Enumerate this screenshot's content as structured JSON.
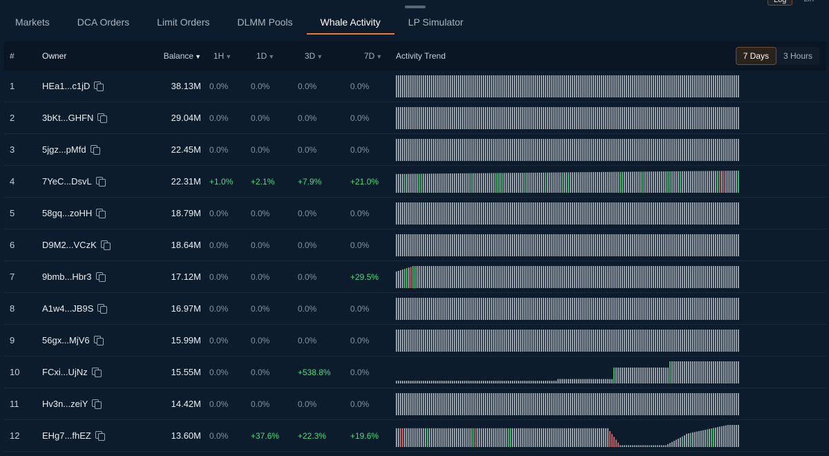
{
  "corner_toggle": {
    "log": "Log",
    "lin": "Lin"
  },
  "tabs": [
    {
      "label": "Markets",
      "active": false
    },
    {
      "label": "DCA Orders",
      "active": false
    },
    {
      "label": "Limit Orders",
      "active": false
    },
    {
      "label": "DLMM Pools",
      "active": false
    },
    {
      "label": "Whale Activity",
      "active": true
    },
    {
      "label": "LP Simulator",
      "active": false
    }
  ],
  "table": {
    "headers": {
      "index": "#",
      "owner": "Owner",
      "balance": "Balance",
      "h1": "1H",
      "d1": "1D",
      "d3": "3D",
      "d7": "7D",
      "trend": "Activity Trend"
    },
    "sort_arrow": "▼",
    "range_options": [
      "7 Days",
      "3 Hours"
    ],
    "active_range": "7 Days"
  },
  "colors": {
    "bar": "#b5bcc4",
    "up": "#4ade80",
    "down": "#f87171",
    "accent": "#ee7a2f"
  },
  "rows": [
    {
      "index": "1",
      "owner": "HEa1...c1jD",
      "balance": "38.13M",
      "h1": "0.0%",
      "d1": "0.0%",
      "d3": "0.0%",
      "d7": "0.0%",
      "trend": "flat"
    },
    {
      "index": "2",
      "owner": "3bKt...GHFN",
      "balance": "29.04M",
      "h1": "0.0%",
      "d1": "0.0%",
      "d3": "0.0%",
      "d7": "0.0%",
      "trend": "flat"
    },
    {
      "index": "3",
      "owner": "5jgz...pMfd",
      "balance": "22.45M",
      "h1": "0.0%",
      "d1": "0.0%",
      "d3": "0.0%",
      "d7": "0.0%",
      "trend": "flat"
    },
    {
      "index": "4",
      "owner": "7YeC...DsvL",
      "balance": "22.31M",
      "h1": "+1.0%",
      "d1": "+2.1%",
      "d3": "+7.9%",
      "d7": "+21.0%",
      "trend": "rising-spikes"
    },
    {
      "index": "5",
      "owner": "58gq...zoHH",
      "balance": "18.79M",
      "h1": "0.0%",
      "d1": "0.0%",
      "d3": "0.0%",
      "d7": "0.0%",
      "trend": "flat"
    },
    {
      "index": "6",
      "owner": "D9M2...VCzK",
      "balance": "18.64M",
      "h1": "0.0%",
      "d1": "0.0%",
      "d3": "0.0%",
      "d7": "0.0%",
      "trend": "flat"
    },
    {
      "index": "7",
      "owner": "9bmb...Hbr3",
      "balance": "17.12M",
      "h1": "0.0%",
      "d1": "0.0%",
      "d3": "0.0%",
      "d7": "+29.5%",
      "trend": "early-ramp"
    },
    {
      "index": "8",
      "owner": "A1w4...JB9S",
      "balance": "16.97M",
      "h1": "0.0%",
      "d1": "0.0%",
      "d3": "0.0%",
      "d7": "0.0%",
      "trend": "flat"
    },
    {
      "index": "9",
      "owner": "56gx...MjV6",
      "balance": "15.99M",
      "h1": "0.0%",
      "d1": "0.0%",
      "d3": "0.0%",
      "d7": "0.0%",
      "trend": "flat"
    },
    {
      "index": "10",
      "owner": "FCxi...UjNz",
      "balance": "15.55M",
      "h1": "0.0%",
      "d1": "0.0%",
      "d3": "+538.8%",
      "d7": "0.0%",
      "trend": "steps"
    },
    {
      "index": "11",
      "owner": "Hv3n...zeiY",
      "balance": "14.42M",
      "h1": "0.0%",
      "d1": "0.0%",
      "d3": "0.0%",
      "d7": "0.0%",
      "trend": "flat"
    },
    {
      "index": "12",
      "owner": "EHg7...fhEZ",
      "balance": "13.60M",
      "h1": "0.0%",
      "d1": "+37.6%",
      "d3": "+22.3%",
      "d7": "+19.6%",
      "trend": "dip"
    }
  ]
}
